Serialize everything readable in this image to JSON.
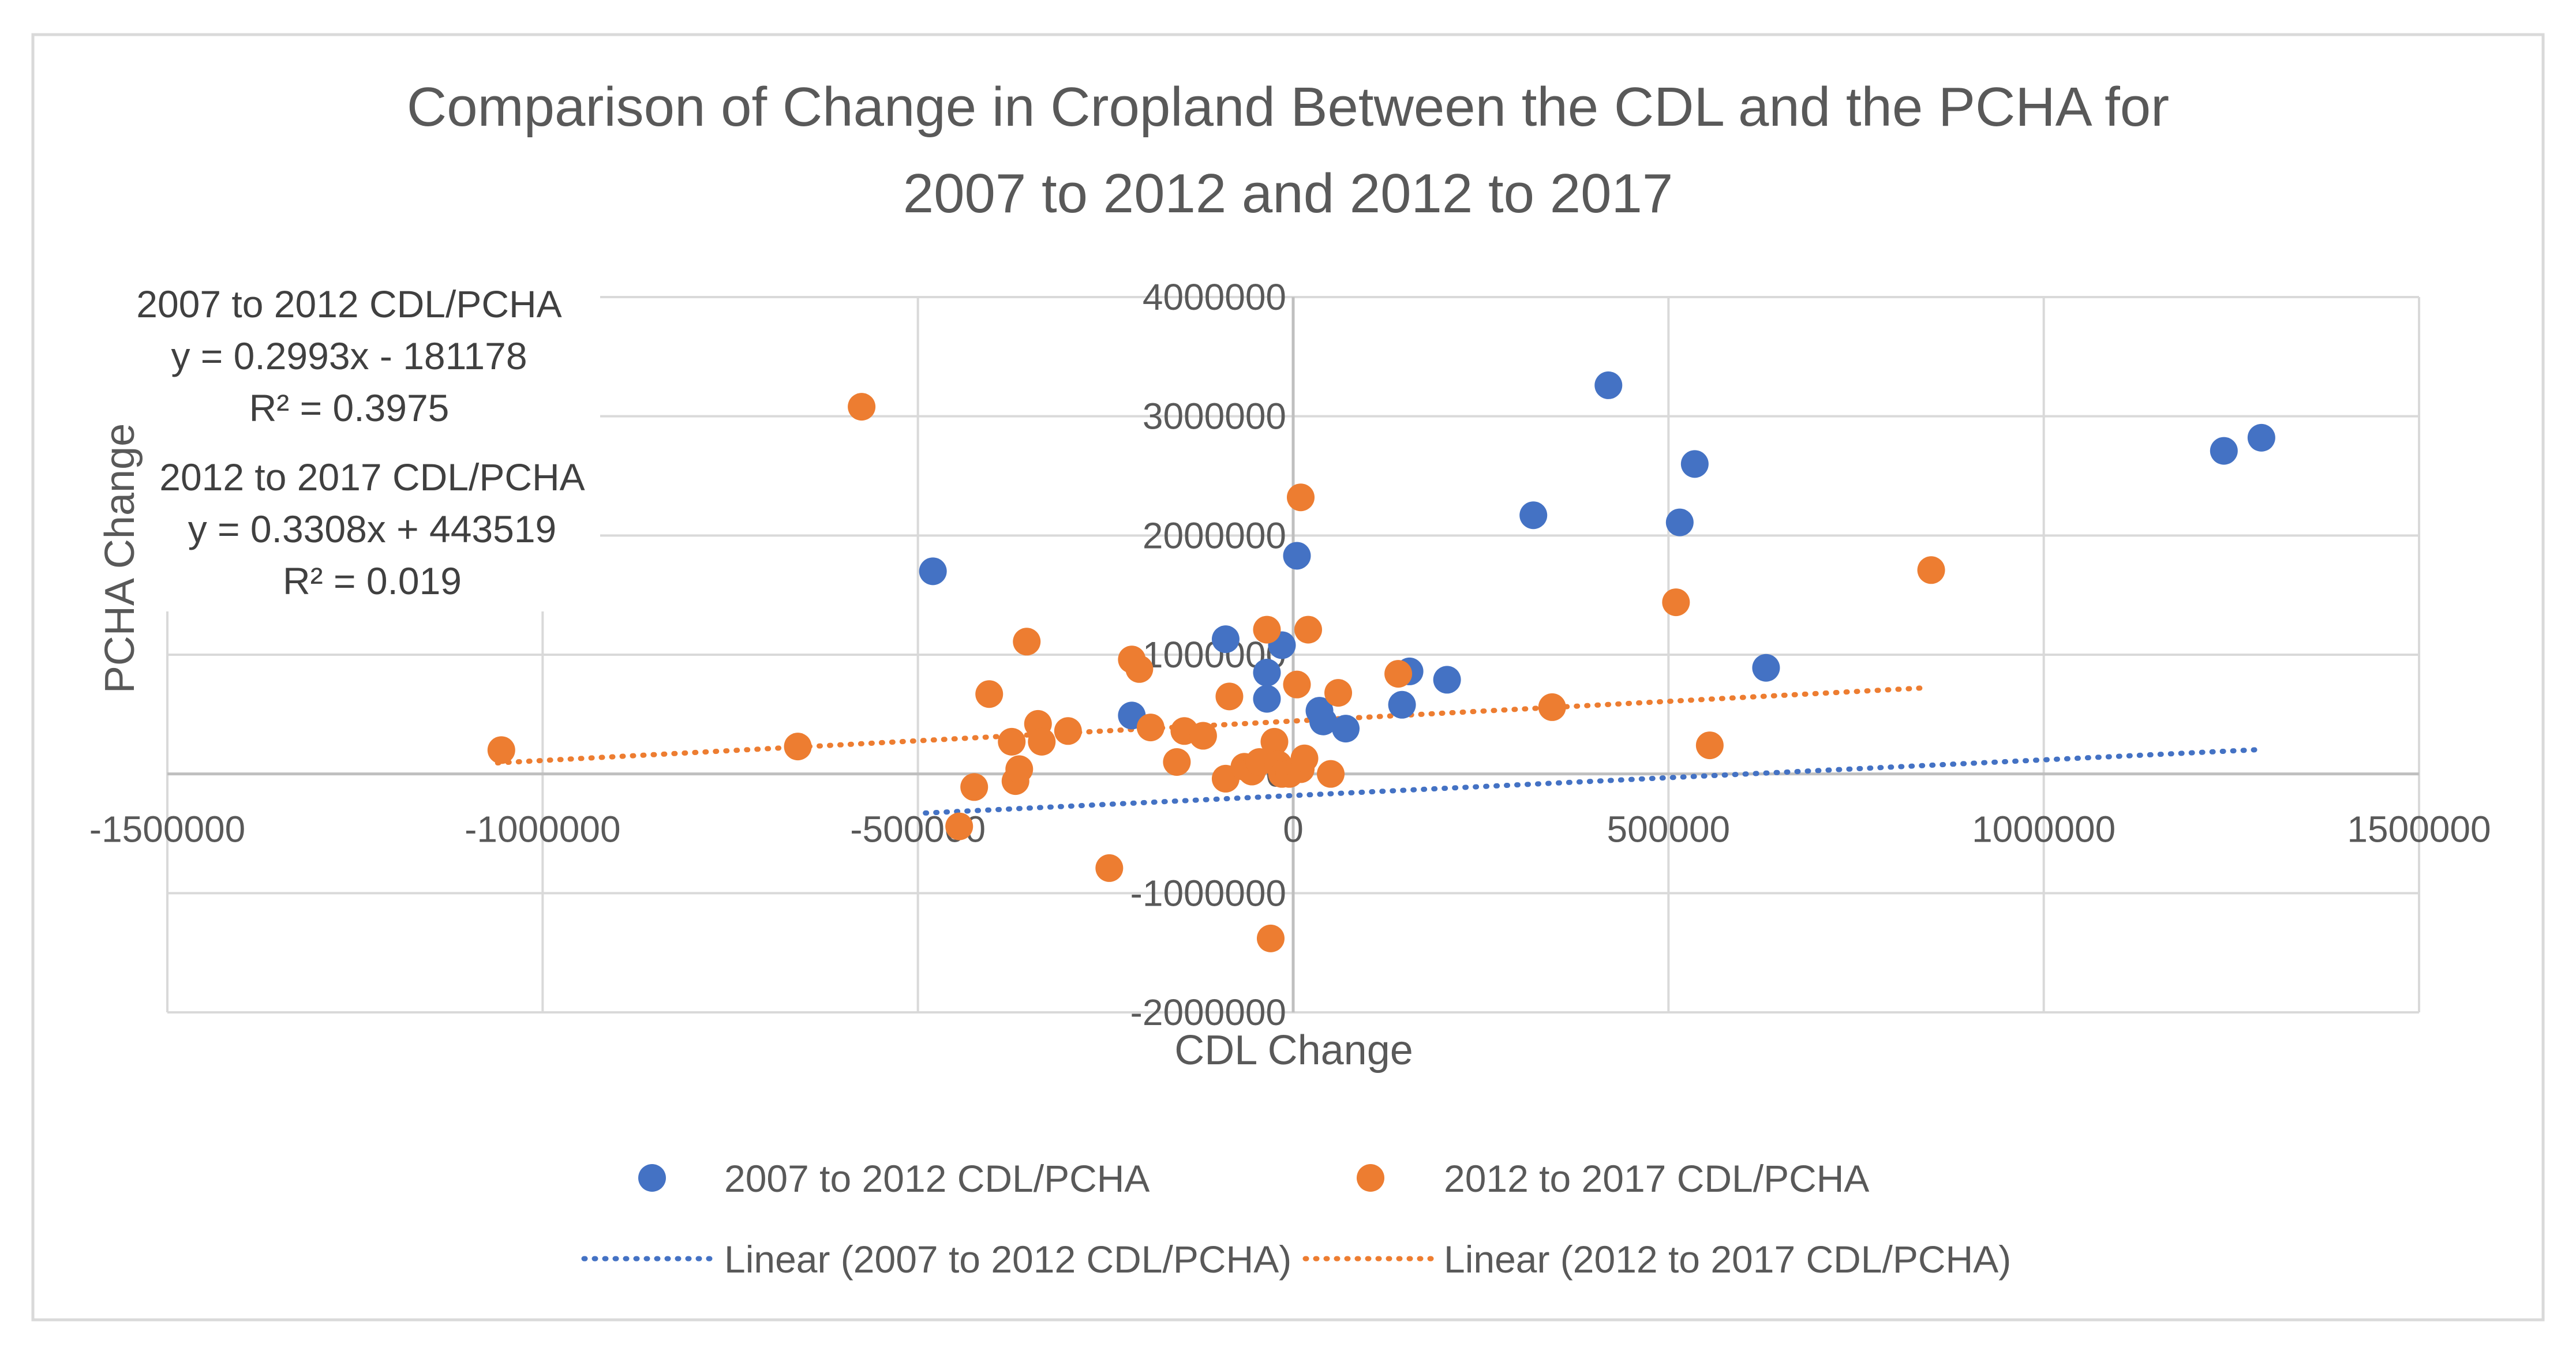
{
  "chart_data": {
    "type": "scatter",
    "title_lines": [
      "Comparison of Change in Cropland Between the CDL and the PCHA for",
      "2007 to 2012 and 2012 to 2017"
    ],
    "xlabel": "CDL Change",
    "ylabel": "PCHA Change",
    "xlim": [
      -1500000,
      1500000
    ],
    "ylim": [
      -2000000,
      4000000
    ],
    "x_ticks": [
      -1500000,
      -1000000,
      -500000,
      0,
      500000,
      1000000,
      1500000
    ],
    "y_ticks": [
      -2000000,
      -1000000,
      0,
      1000000,
      2000000,
      3000000,
      4000000
    ],
    "x_tick_labels": [
      "-1500000",
      "-1000000",
      "-500000",
      "0",
      "500000",
      "1000000",
      "1500000"
    ],
    "y_tick_labels": [
      "-2000000",
      "-1000000",
      "0",
      "1000000",
      "2000000",
      "3000000",
      "4000000"
    ],
    "grid": true,
    "series": [
      {
        "name": "2007 to 2012 CDL/PCHA",
        "color": "#4472C4",
        "points": [
          [
            -480000,
            1700000
          ],
          [
            -90000,
            1130000
          ],
          [
            -15000,
            1080000
          ],
          [
            5000,
            1830000
          ],
          [
            -35000,
            850000
          ],
          [
            -35000,
            630000
          ],
          [
            -215000,
            490000
          ],
          [
            35000,
            530000
          ],
          [
            40000,
            440000
          ],
          [
            70000,
            380000
          ],
          [
            145000,
            580000
          ],
          [
            155000,
            860000
          ],
          [
            205000,
            790000
          ],
          [
            320000,
            2170000
          ],
          [
            420000,
            3260000
          ],
          [
            515000,
            2110000
          ],
          [
            535000,
            2600000
          ],
          [
            630000,
            890000
          ],
          [
            1240000,
            2710000
          ],
          [
            1290000,
            2820000
          ]
        ],
        "trendline": {
          "label": "Linear (2007 to 2012 CDL/PCHA)",
          "slope": 0.2993,
          "intercept": -181178,
          "x_range": [
            -490000,
            1290000
          ],
          "equation": "y = 0.2993x - 181178",
          "r2": "R² = 0.3975"
        }
      },
      {
        "name": "2012 to 2017 CDL/PCHA",
        "color": "#ED7D31",
        "points": [
          [
            -1055000,
            200000
          ],
          [
            -660000,
            230000
          ],
          [
            -575000,
            3080000
          ],
          [
            -445000,
            -440000
          ],
          [
            -425000,
            -110000
          ],
          [
            -405000,
            670000
          ],
          [
            -375000,
            270000
          ],
          [
            -370000,
            -60000
          ],
          [
            -365000,
            40000
          ],
          [
            -355000,
            1110000
          ],
          [
            -340000,
            420000
          ],
          [
            -335000,
            270000
          ],
          [
            -300000,
            360000
          ],
          [
            -215000,
            960000
          ],
          [
            -205000,
            880000
          ],
          [
            -190000,
            390000
          ],
          [
            -155000,
            100000
          ],
          [
            -145000,
            360000
          ],
          [
            -120000,
            320000
          ],
          [
            -90000,
            -40000
          ],
          [
            -85000,
            650000
          ],
          [
            -65000,
            60000
          ],
          [
            -55000,
            20000
          ],
          [
            -45000,
            100000
          ],
          [
            -35000,
            1210000
          ],
          [
            -30000,
            -1380000
          ],
          [
            -25000,
            270000
          ],
          [
            -20000,
            80000
          ],
          [
            -15000,
            0
          ],
          [
            -10000,
            20000
          ],
          [
            -5000,
            0
          ],
          [
            5000,
            750000
          ],
          [
            10000,
            40000
          ],
          [
            10000,
            2320000
          ],
          [
            15000,
            130000
          ],
          [
            20000,
            1210000
          ],
          [
            50000,
            0
          ],
          [
            60000,
            680000
          ],
          [
            140000,
            840000
          ],
          [
            345000,
            560000
          ],
          [
            510000,
            1440000
          ],
          [
            555000,
            240000
          ],
          [
            850000,
            1710000
          ],
          [
            -245000,
            -790000
          ]
        ],
        "trendline": {
          "label": "Linear (2012 to 2017 CDL/PCHA)",
          "slope": 0.3308,
          "intercept": 443519,
          "x_range": [
            -1060000,
            835000
          ],
          "equation": "y = 0.3308x + 443519",
          "r2": "R² = 0.019"
        }
      }
    ],
    "annotation_lines": [
      "2007 to 2012 CDL/PCHA",
      "y = 0.2993x - 181178",
      "R² = 0.3975",
      "2012 to 2017 CDL/PCHA",
      "y = 0.3308x + 443519",
      "R² = 0.019"
    ],
    "legend": {
      "placement": "bottom",
      "items": [
        "2007 to 2012 CDL/PCHA",
        "2012 to 2017 CDL/PCHA",
        "Linear (2007 to 2012 CDL/PCHA)",
        "Linear (2012 to 2017 CDL/PCHA)"
      ]
    },
    "colors": {
      "grid": "#D9D9D9",
      "axis": "#BFBFBF",
      "text": "#595959",
      "border": "#D9D9D9"
    }
  }
}
